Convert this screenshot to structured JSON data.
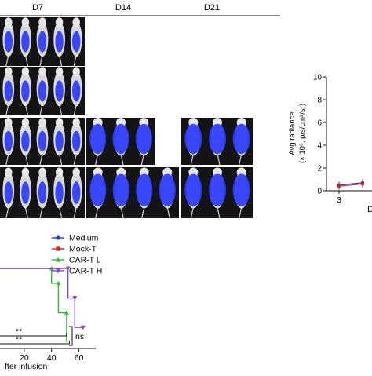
{
  "panel_a": {
    "timepoints": [
      "D7",
      "D14",
      "D21"
    ],
    "rows": [
      {
        "group": "row-1",
        "d7": 5,
        "d14": 0,
        "d21": 0
      },
      {
        "group": "row-2",
        "d7": 5,
        "d14": 0,
        "d21": 0
      },
      {
        "group": "row-3",
        "d7": 5,
        "d14": 3,
        "d21": 3
      },
      {
        "group": "row-4",
        "d7": 5,
        "d14": 4,
        "d21": 3
      }
    ]
  },
  "chart_data": [
    {
      "type": "line",
      "title": "",
      "xlabel": "D",
      "ylabel": "Avg radiance",
      "ylabel_units": "(× 10⁶, p/s/cm²/sr)",
      "ylim": [
        0,
        10
      ],
      "yticks": [
        "0",
        "2",
        "4",
        "6",
        "8",
        "10"
      ],
      "xticks": [
        "3"
      ],
      "series": [
        {
          "name": "Medium",
          "color": "#1f3fbf",
          "points": [
            [
              3,
              0.5
            ],
            [
              4,
              0.7
            ]
          ]
        },
        {
          "name": "Mock-T",
          "color": "#d62020",
          "points": [
            [
              3,
              0.4
            ],
            [
              4,
              0.6
            ]
          ]
        }
      ]
    },
    {
      "type": "line",
      "subtype": "survival",
      "xlabel": "fter infusion",
      "xticks": [
        "20",
        "40",
        "60"
      ],
      "xlim": [
        0,
        70
      ],
      "legend": {
        "placement": "top-right",
        "entries": [
          {
            "name": "Medium",
            "color": "#1f3fbf",
            "marker": "circle"
          },
          {
            "name": "Mock-T",
            "color": "#d62020",
            "marker": "square"
          },
          {
            "name": "CAR-T L",
            "color": "#2fbf2f",
            "marker": "triangle-up"
          },
          {
            "name": "CAR-T H",
            "color": "#8e44c9",
            "marker": "triangle-down"
          }
        ]
      },
      "series": [
        {
          "name": "CAR-T L",
          "color": "#2fbf2f",
          "steps": [
            [
              0,
              100
            ],
            [
              40,
              100
            ],
            [
              40,
              80
            ],
            [
              45,
              80
            ],
            [
              45,
              40
            ],
            [
              51,
              40
            ],
            [
              51,
              0
            ]
          ]
        },
        {
          "name": "CAR-T H",
          "color": "#8e44c9",
          "steps": [
            [
              0,
              100
            ],
            [
              52,
              100
            ],
            [
              52,
              60
            ],
            [
              57,
              60
            ],
            [
              57,
              20
            ],
            [
              63,
              20
            ]
          ]
        }
      ],
      "annotations": [
        {
          "label": "**",
          "from": 0,
          "to": 51,
          "level": 1
        },
        {
          "label": "**",
          "from": 0,
          "to": 53,
          "level": 2
        },
        {
          "label": "ns",
          "from": 51,
          "to": 63,
          "level": 3
        }
      ]
    }
  ]
}
